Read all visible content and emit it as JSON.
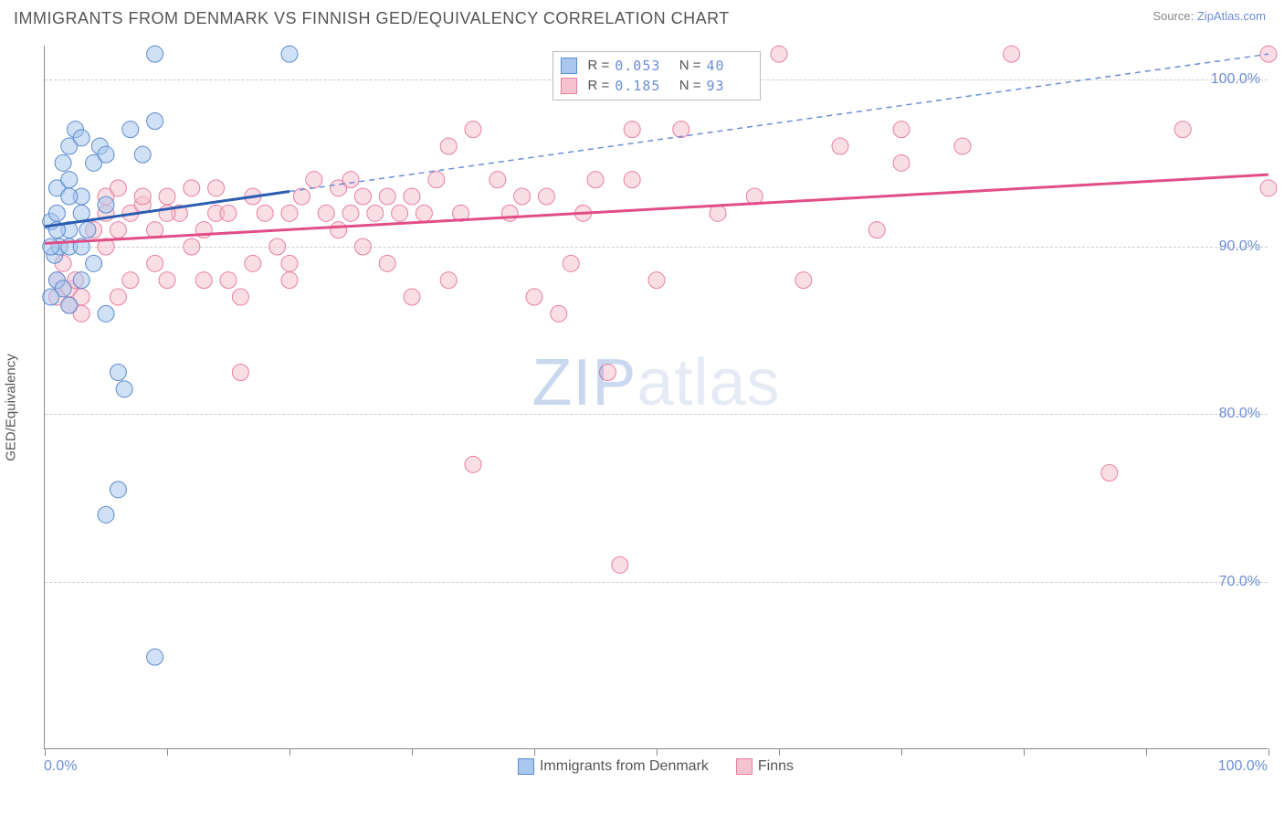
{
  "title": "IMMIGRANTS FROM DENMARK VS FINNISH GED/EQUIVALENCY CORRELATION CHART",
  "source_prefix": "Source: ",
  "source_link": "ZipAtlas.com",
  "ylabel": "GED/Equivalency",
  "watermark_bold": "ZIP",
  "watermark_light": "atlas",
  "chart": {
    "type": "scatter",
    "background_color": "#ffffff",
    "grid_color": "#cccccc",
    "axis_color": "#888888",
    "xlim": [
      0,
      100
    ],
    "ylim": [
      60,
      102
    ],
    "x_ticks": [
      0,
      10,
      20,
      30,
      40,
      50,
      60,
      70,
      80,
      90,
      100
    ],
    "y_ticks": [
      70,
      80,
      90,
      100
    ],
    "y_tick_labels": [
      "70.0%",
      "80.0%",
      "90.0%",
      "100.0%"
    ],
    "x_min_label": "0.0%",
    "x_max_label": "100.0%",
    "tick_color": "#6b8dd6",
    "tick_fontsize": 16,
    "marker_radius": 9,
    "marker_opacity": 0.55,
    "series": [
      {
        "id": "denmark",
        "label": "Immigrants from Denmark",
        "fill": "#a9c6ec",
        "stroke": "#5a8bd0",
        "R": "0.053",
        "N": "40",
        "trend": {
          "x1": 0,
          "y1": 91.2,
          "x2": 20,
          "y2": 93.3,
          "color": "#2a5db0",
          "width": 3,
          "dash": ""
        },
        "extrap": {
          "x1": 20,
          "y1": 93.3,
          "x2": 100,
          "y2": 101.5,
          "color": "#6b8dd6",
          "width": 1.5,
          "dash": "6,5"
        },
        "points": [
          [
            0.5,
            91.5
          ],
          [
            1,
            92
          ],
          [
            1,
            93.5
          ],
          [
            1.5,
            95
          ],
          [
            2,
            96
          ],
          [
            2,
            94
          ],
          [
            2.5,
            97
          ],
          [
            3,
            96.5
          ],
          [
            3,
            93
          ],
          [
            3.5,
            91
          ],
          [
            4,
            89
          ],
          [
            1,
            88
          ],
          [
            2,
            86.5
          ],
          [
            1.5,
            87.5
          ],
          [
            0.5,
            87
          ],
          [
            0.8,
            89.5
          ],
          [
            4,
            95
          ],
          [
            4.5,
            96
          ],
          [
            5,
            92.5
          ],
          [
            2,
            91
          ],
          [
            1.2,
            90
          ],
          [
            3,
            88
          ],
          [
            5,
            86
          ],
          [
            6,
            82.5
          ],
          [
            6.5,
            81.5
          ],
          [
            6,
            75.5
          ],
          [
            5,
            74
          ],
          [
            9,
            65.5
          ],
          [
            9,
            101.5
          ],
          [
            20,
            101.5
          ],
          [
            5,
            95.5
          ],
          [
            7,
            97
          ],
          [
            8,
            95.5
          ],
          [
            9,
            97.5
          ],
          [
            3,
            92
          ],
          [
            2,
            90
          ],
          [
            1,
            91
          ],
          [
            0.5,
            90
          ],
          [
            2,
            93
          ],
          [
            3,
            90
          ]
        ]
      },
      {
        "id": "finns",
        "label": "Finns",
        "fill": "#f5c3d0",
        "stroke": "#e87fa0",
        "R": "0.185",
        "N": "93",
        "trend": {
          "x1": 0,
          "y1": 90.2,
          "x2": 100,
          "y2": 94.3,
          "color": "#e14d86",
          "width": 3,
          "dash": ""
        },
        "points": [
          [
            1,
            87
          ],
          [
            1,
            88
          ],
          [
            2,
            86.5
          ],
          [
            2,
            87.5
          ],
          [
            1.5,
            89
          ],
          [
            2.5,
            88
          ],
          [
            3,
            87
          ],
          [
            3,
            86
          ],
          [
            4,
            91
          ],
          [
            5,
            92
          ],
          [
            5,
            93
          ],
          [
            6,
            91
          ],
          [
            6,
            93.5
          ],
          [
            7,
            92
          ],
          [
            7,
            88
          ],
          [
            8,
            92.5
          ],
          [
            8,
            93
          ],
          [
            9,
            89
          ],
          [
            9,
            91
          ],
          [
            10,
            93
          ],
          [
            10,
            88
          ],
          [
            11,
            92
          ],
          [
            12,
            90
          ],
          [
            12,
            93.5
          ],
          [
            13,
            91
          ],
          [
            14,
            92
          ],
          [
            14,
            93.5
          ],
          [
            15,
            88
          ],
          [
            15,
            92
          ],
          [
            16,
            87
          ],
          [
            17,
            89
          ],
          [
            17,
            93
          ],
          [
            18,
            92
          ],
          [
            19,
            90
          ],
          [
            20,
            88
          ],
          [
            20,
            92
          ],
          [
            21,
            93
          ],
          [
            22,
            94
          ],
          [
            23,
            92
          ],
          [
            24,
            91
          ],
          [
            24,
            93.5
          ],
          [
            25,
            94
          ],
          [
            25,
            92
          ],
          [
            26,
            90
          ],
          [
            26,
            93
          ],
          [
            27,
            92
          ],
          [
            28,
            89
          ],
          [
            28,
            93
          ],
          [
            29,
            92
          ],
          [
            30,
            87
          ],
          [
            30,
            93
          ],
          [
            31,
            92
          ],
          [
            32,
            94
          ],
          [
            33,
            96
          ],
          [
            33,
            88
          ],
          [
            34,
            92
          ],
          [
            35,
            97
          ],
          [
            37,
            94
          ],
          [
            38,
            92
          ],
          [
            39,
            93
          ],
          [
            40,
            87
          ],
          [
            41,
            93
          ],
          [
            42,
            86
          ],
          [
            43,
            89
          ],
          [
            44,
            92
          ],
          [
            45,
            94
          ],
          [
            46,
            82.5
          ],
          [
            48,
            94
          ],
          [
            48,
            97
          ],
          [
            50,
            88
          ],
          [
            52,
            97
          ],
          [
            55,
            92
          ],
          [
            58,
            93
          ],
          [
            60,
            101.5
          ],
          [
            62,
            88
          ],
          [
            65,
            96
          ],
          [
            68,
            91
          ],
          [
            70,
            97
          ],
          [
            70,
            95
          ],
          [
            75,
            96
          ],
          [
            79,
            101.5
          ],
          [
            87,
            76.5
          ],
          [
            93,
            97
          ],
          [
            100,
            101.5
          ],
          [
            100,
            93.5
          ],
          [
            47,
            71
          ],
          [
            35,
            77
          ],
          [
            16,
            82.5
          ],
          [
            20,
            89
          ],
          [
            5,
            90
          ],
          [
            10,
            92
          ],
          [
            13,
            88
          ],
          [
            6,
            87
          ]
        ]
      }
    ],
    "bottom_legend": [
      {
        "swatch_fill": "#a9c6ec",
        "swatch_stroke": "#5a8bd0",
        "label": "Immigrants from Denmark"
      },
      {
        "swatch_fill": "#f5c3d0",
        "swatch_stroke": "#e87fa0",
        "label": "Finns"
      }
    ],
    "top_legend_labels": {
      "r": "R =",
      "n": "N ="
    }
  }
}
